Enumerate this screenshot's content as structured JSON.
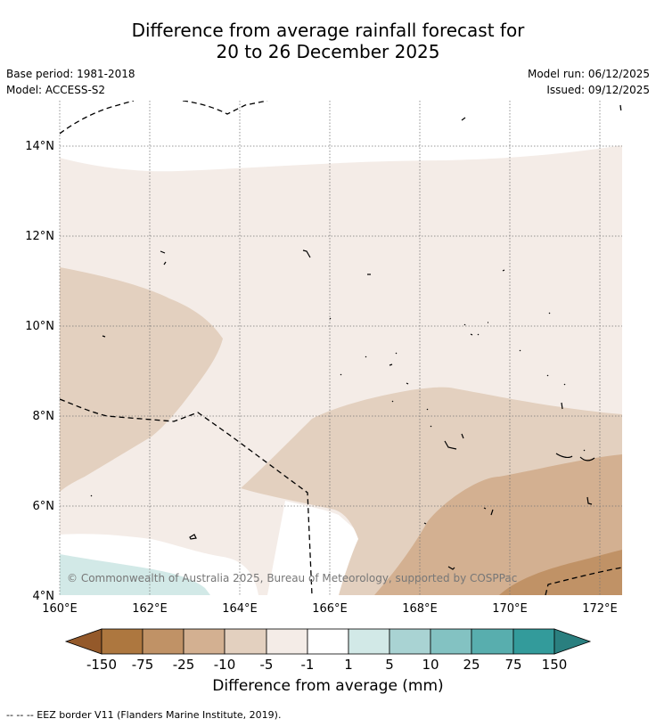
{
  "title_line1": "Difference from average rainfall forecast for",
  "title_line2": "20 to 26 December 2025",
  "meta_left": {
    "base_period": "Base period: 1981-2018",
    "model": "Model: ACCESS-S2"
  },
  "meta_right": {
    "model_run": "Model run: 06/12/2025",
    "issued": "Issued: 09/12/2025"
  },
  "copyright": "© Commonwealth of Australia 2025, Bureau of Meteorology, supported by COSPPac",
  "map": {
    "lon_range": [
      160,
      172.5
    ],
    "lat_range": [
      4,
      15
    ],
    "x_ticks": [
      {
        "value": 160,
        "label": "160°E"
      },
      {
        "value": 162,
        "label": "162°E"
      },
      {
        "value": 164,
        "label": "164°E"
      },
      {
        "value": 166,
        "label": "166°E"
      },
      {
        "value": 168,
        "label": "168°E"
      },
      {
        "value": 170,
        "label": "170°E"
      },
      {
        "value": 172,
        "label": "172°E"
      }
    ],
    "y_ticks": [
      {
        "value": 4,
        "label": "4°N"
      },
      {
        "value": 6,
        "label": "6°N"
      },
      {
        "value": 8,
        "label": "8°N"
      },
      {
        "value": 10,
        "label": "10°N"
      },
      {
        "value": 12,
        "label": "12°N"
      },
      {
        "value": 14,
        "label": "14°N"
      }
    ]
  },
  "colorbar": {
    "title": "Difference from average (mm)",
    "ticks": [
      "-150",
      "-75",
      "-25",
      "-10",
      "-5",
      "-1",
      "1",
      "5",
      "10",
      "25",
      "75",
      "150"
    ],
    "colors": [
      "#94592a",
      "#ad773f",
      "#c09266",
      "#d3b091",
      "#e3d0bf",
      "#f4ece7",
      "#ffffff",
      "#d2e9e7",
      "#a9d3d3",
      "#83c2c2",
      "#58aeae",
      "#339b9b",
      "#2a7f7f"
    ]
  },
  "legend_note": "--  --  -- EEZ border V11 (Flanders Marine Institute, 2019)."
}
